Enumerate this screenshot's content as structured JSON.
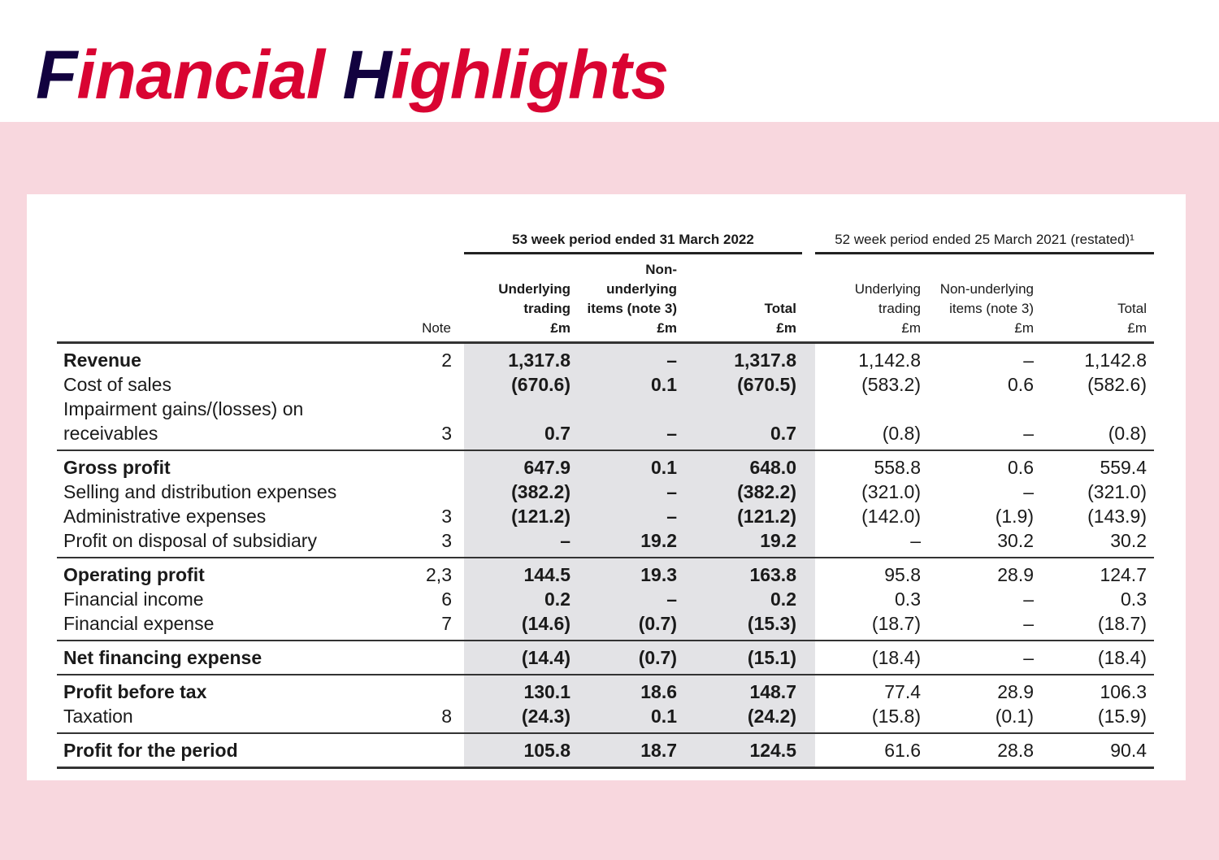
{
  "title": {
    "cap1": "F",
    "rest1": "inancial ",
    "cap2": "H",
    "rest2": "ighlights"
  },
  "colors": {
    "title_navy": "#12023f",
    "title_red": "#d90432",
    "background_pink": "#f8d7de",
    "shaded_column": "#e3e3e6"
  },
  "table": {
    "group_current": "53 week period ended 31 March 2022",
    "group_prior": "52 week period ended 25 March 2021 (restated)¹",
    "note_header": "Note",
    "columns": [
      {
        "lines": [
          "Underlying",
          "trading",
          "£m"
        ]
      },
      {
        "lines": [
          "Non-",
          "underlying",
          "items (note 3)",
          "£m"
        ]
      },
      {
        "lines": [
          "Total",
          "£m"
        ]
      },
      {
        "lines": [
          "Underlying",
          "trading",
          "£m"
        ]
      },
      {
        "lines": [
          "Non-underlying",
          "items (note 3)",
          "£m"
        ]
      },
      {
        "lines": [
          "Total",
          "£m"
        ]
      }
    ],
    "sections": [
      [
        {
          "label": "Revenue",
          "bold": true,
          "note": "2",
          "values": [
            "1,317.8",
            "–",
            "1,317.8",
            "1,142.8",
            "–",
            "1,142.8"
          ]
        },
        {
          "label": "Cost of sales",
          "note": "",
          "values": [
            "(670.6)",
            "0.1",
            "(670.5)",
            "(583.2)",
            "0.6",
            "(582.6)"
          ]
        },
        {
          "label": "Impairment gains/(losses) on\nreceivables",
          "note": "3",
          "values": [
            "0.7",
            "–",
            "0.7",
            "(0.8)",
            "–",
            "(0.8)"
          ]
        }
      ],
      [
        {
          "label": "Gross profit",
          "bold": true,
          "note": "",
          "values": [
            "647.9",
            "0.1",
            "648.0",
            "558.8",
            "0.6",
            "559.4"
          ]
        },
        {
          "label": "Selling and distribution expenses",
          "note": "",
          "values": [
            "(382.2)",
            "–",
            "(382.2)",
            "(321.0)",
            "–",
            "(321.0)"
          ]
        },
        {
          "label": "Administrative expenses",
          "note": "3",
          "values": [
            "(121.2)",
            "–",
            "(121.2)",
            "(142.0)",
            "(1.9)",
            "(143.9)"
          ]
        },
        {
          "label": "Profit on disposal of subsidiary",
          "note": "3",
          "values": [
            "–",
            "19.2",
            "19.2",
            "–",
            "30.2",
            "30.2"
          ]
        }
      ],
      [
        {
          "label": "Operating profit",
          "bold": true,
          "note": "2,3",
          "values": [
            "144.5",
            "19.3",
            "163.8",
            "95.8",
            "28.9",
            "124.7"
          ]
        },
        {
          "label": "Financial income",
          "note": "6",
          "values": [
            "0.2",
            "–",
            "0.2",
            "0.3",
            "–",
            "0.3"
          ]
        },
        {
          "label": "Financial expense",
          "note": "7",
          "values": [
            "(14.6)",
            "(0.7)",
            "(15.3)",
            "(18.7)",
            "–",
            "(18.7)"
          ]
        }
      ],
      [
        {
          "label": "Net financing expense",
          "bold": true,
          "note": "",
          "values": [
            "(14.4)",
            "(0.7)",
            "(15.1)",
            "(18.4)",
            "–",
            "(18.4)"
          ]
        }
      ],
      [
        {
          "label": "Profit before tax",
          "bold": true,
          "note": "",
          "values": [
            "130.1",
            "18.6",
            "148.7",
            "77.4",
            "28.9",
            "106.3"
          ]
        },
        {
          "label": "Taxation",
          "note": "8",
          "values": [
            "(24.3)",
            "0.1",
            "(24.2)",
            "(15.8)",
            "(0.1)",
            "(15.9)"
          ]
        }
      ],
      [
        {
          "label": "Profit for the period",
          "bold": true,
          "note": "",
          "values": [
            "105.8",
            "18.7",
            "124.5",
            "61.6",
            "28.8",
            "90.4"
          ]
        }
      ]
    ]
  }
}
